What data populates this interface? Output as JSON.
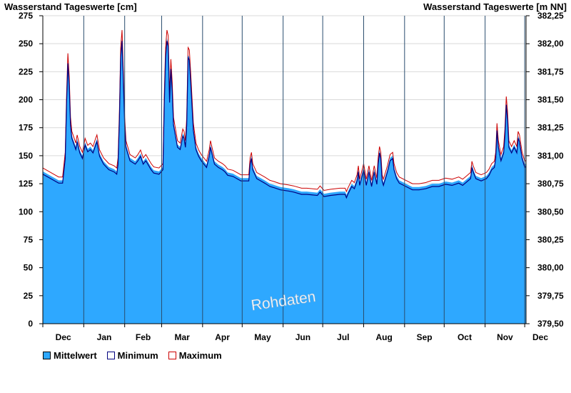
{
  "chart_data": {
    "type": "area",
    "ylabel": "Wasserstand Tageswerte [cm]",
    "ylabel_right": "Wasserstand Tageswerte [m NN]",
    "ylim": [
      0,
      275
    ],
    "yticks": [
      0,
      25,
      50,
      75,
      100,
      125,
      150,
      175,
      200,
      225,
      250,
      275
    ],
    "ylim_right": [
      379.5,
      382.25
    ],
    "yticks_right": [
      "379,50",
      "379,75",
      "380,00",
      "380,25",
      "380,50",
      "380,75",
      "381,00",
      "381,25",
      "381,50",
      "381,75",
      "382,00",
      "382,25"
    ],
    "months": [
      "Dec",
      "Jan",
      "Feb",
      "Mar",
      "Apr",
      "May",
      "Jun",
      "Jul",
      "Aug",
      "Sep",
      "Oct",
      "Nov",
      "Dec"
    ],
    "month_days": [
      31,
      31,
      28,
      31,
      30,
      31,
      30,
      31,
      31,
      30,
      31,
      30,
      1
    ],
    "x_start_day": 0,
    "x_end_day": 366,
    "grid": true,
    "watermark": "Rohdaten",
    "colors": {
      "mean": "#2ea8ff",
      "minimum": "#000080",
      "maximum": "#cc0000"
    },
    "series": [
      {
        "name": "Mittelwert",
        "points": [
          [
            0,
            136
          ],
          [
            6,
            132
          ],
          [
            12,
            128
          ],
          [
            15,
            128
          ],
          [
            17,
            150
          ],
          [
            18,
            200
          ],
          [
            19,
            235
          ],
          [
            20,
            215
          ],
          [
            21,
            180
          ],
          [
            22,
            168
          ],
          [
            25,
            158
          ],
          [
            26,
            165
          ],
          [
            28,
            155
          ],
          [
            30,
            150
          ],
          [
            32,
            162
          ],
          [
            34,
            156
          ],
          [
            36,
            158
          ],
          [
            38,
            155
          ],
          [
            40,
            162
          ],
          [
            41,
            165
          ],
          [
            43,
            152
          ],
          [
            46,
            145
          ],
          [
            50,
            140
          ],
          [
            54,
            138
          ],
          [
            56,
            136
          ],
          [
            57,
            145
          ],
          [
            58,
            185
          ],
          [
            59,
            240
          ],
          [
            60,
            255
          ],
          [
            61,
            220
          ],
          [
            62,
            180
          ],
          [
            63,
            160
          ],
          [
            66,
            148
          ],
          [
            70,
            145
          ],
          [
            72,
            148
          ],
          [
            74,
            152
          ],
          [
            76,
            145
          ],
          [
            78,
            148
          ],
          [
            80,
            144
          ],
          [
            82,
            140
          ],
          [
            84,
            137
          ],
          [
            88,
            136
          ],
          [
            91,
            140
          ],
          [
            92,
            200
          ],
          [
            93,
            240
          ],
          [
            94,
            255
          ],
          [
            95,
            250
          ],
          [
            96,
            200
          ],
          [
            97,
            230
          ],
          [
            98,
            210
          ],
          [
            99,
            180
          ],
          [
            102,
            160
          ],
          [
            104,
            158
          ],
          [
            106,
            170
          ],
          [
            107,
            168
          ],
          [
            108,
            160
          ],
          [
            109,
            180
          ],
          [
            110,
            240
          ],
          [
            111,
            238
          ],
          [
            112,
            218
          ],
          [
            114,
            175
          ],
          [
            116,
            158
          ],
          [
            118,
            152
          ],
          [
            120,
            148
          ],
          [
            122,
            145
          ],
          [
            124,
            142
          ],
          [
            126,
            152
          ],
          [
            127,
            160
          ],
          [
            128,
            155
          ],
          [
            130,
            145
          ],
          [
            133,
            142
          ],
          [
            136,
            140
          ],
          [
            138,
            138
          ],
          [
            140,
            135
          ],
          [
            144,
            134
          ],
          [
            150,
            130
          ],
          [
            156,
            130
          ],
          [
            157,
            145
          ],
          [
            158,
            150
          ],
          [
            159,
            140
          ],
          [
            162,
            132
          ],
          [
            168,
            128
          ],
          [
            172,
            125
          ],
          [
            175,
            124
          ],
          [
            180,
            122
          ],
          [
            186,
            121
          ],
          [
            190,
            120
          ],
          [
            196,
            118
          ],
          [
            200,
            118
          ],
          [
            208,
            117
          ],
          [
            210,
            120
          ],
          [
            213,
            116
          ],
          [
            218,
            117
          ],
          [
            225,
            118
          ],
          [
            229,
            118
          ],
          [
            230,
            115
          ],
          [
            231,
            118
          ],
          [
            234,
            125
          ],
          [
            236,
            123
          ],
          [
            238,
            130
          ],
          [
            239,
            138
          ],
          [
            240,
            126
          ],
          [
            242,
            135
          ],
          [
            243,
            140
          ],
          [
            245,
            126
          ],
          [
            247,
            138
          ],
          [
            249,
            125
          ],
          [
            251,
            138
          ],
          [
            253,
            127
          ],
          [
            254,
            145
          ],
          [
            255,
            155
          ],
          [
            256,
            150
          ],
          [
            257,
            130
          ],
          [
            258,
            126
          ],
          [
            261,
            138
          ],
          [
            263,
            148
          ],
          [
            265,
            150
          ],
          [
            266,
            140
          ],
          [
            268,
            132
          ],
          [
            270,
            128
          ],
          [
            275,
            125
          ],
          [
            280,
            122
          ],
          [
            285,
            122
          ],
          [
            290,
            123
          ],
          [
            295,
            125
          ],
          [
            300,
            125
          ],
          [
            305,
            127
          ],
          [
            310,
            126
          ],
          [
            315,
            128
          ],
          [
            318,
            126
          ],
          [
            320,
            128
          ],
          [
            324,
            132
          ],
          [
            325,
            142
          ],
          [
            326,
            138
          ],
          [
            328,
            132
          ],
          [
            332,
            130
          ],
          [
            336,
            132
          ],
          [
            338,
            135
          ],
          [
            340,
            140
          ],
          [
            342,
            142
          ],
          [
            343,
            150
          ],
          [
            344,
            175
          ],
          [
            345,
            160
          ],
          [
            347,
            148
          ],
          [
            349,
            155
          ],
          [
            350,
            170
          ],
          [
            351,
            198
          ],
          [
            352,
            185
          ],
          [
            353,
            160
          ],
          [
            355,
            155
          ],
          [
            357,
            160
          ],
          [
            359,
            155
          ],
          [
            360,
            168
          ],
          [
            361,
            165
          ],
          [
            363,
            150
          ],
          [
            365,
            142
          ],
          [
            366,
            143
          ]
        ]
      },
      {
        "name": "Minimum"
      },
      {
        "name": "Maximum"
      }
    ]
  }
}
